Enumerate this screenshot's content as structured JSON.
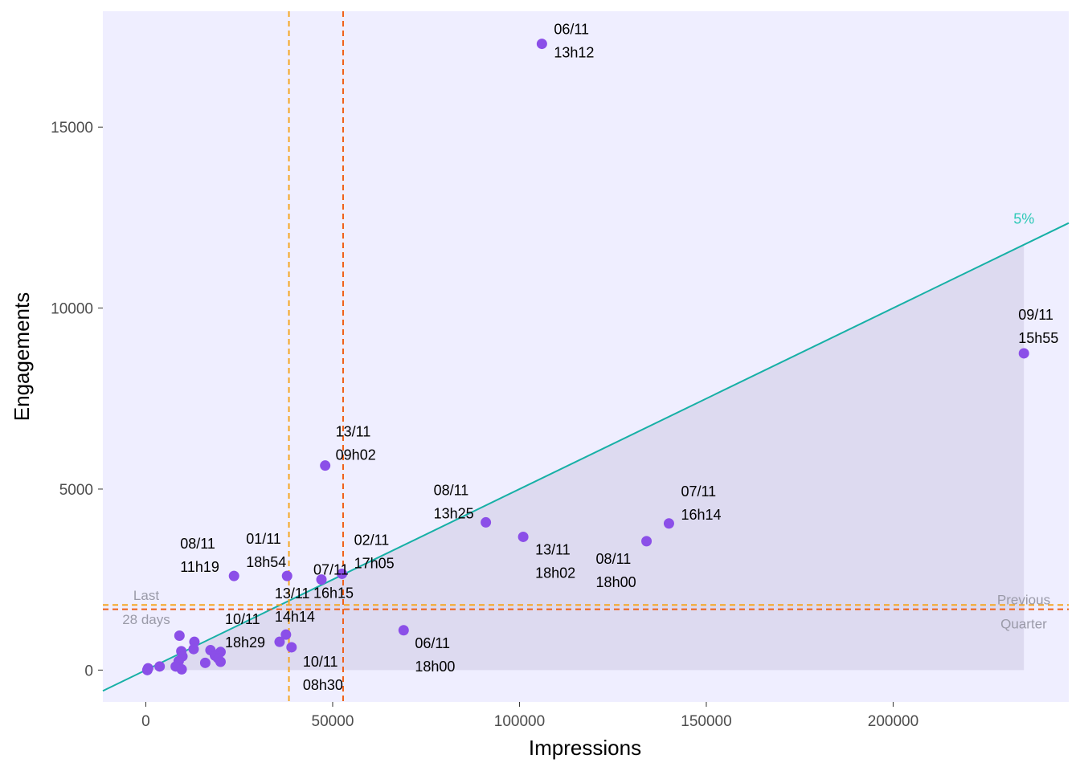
{
  "chart_data": {
    "type": "scatter",
    "xlabel": "Impressions",
    "ylabel": "Engagements",
    "xlim": [
      -11500,
      247000
    ],
    "ylim": [
      -880,
      18200
    ],
    "x_ticks": [
      0,
      50000,
      100000,
      150000,
      200000
    ],
    "y_ticks": [
      0,
      5000,
      10000,
      15000
    ],
    "grid": false,
    "colors": {
      "panel": "#efeeff",
      "shade": "#dddaf0",
      "point": "#8b4fe8",
      "rate_line": "#17b0a6",
      "rate_label": "#2fc9b8",
      "last28": "#f5a623",
      "quarter": "#f0601a",
      "ref_text": "#9a9aa8"
    },
    "rate_line": {
      "rate": 0.05,
      "label": "5%"
    },
    "reference_lines": [
      {
        "name": "last28",
        "x": 38300,
        "y": 1800,
        "label_line1": "Last",
        "label_line2": "28 days"
      },
      {
        "name": "quarter",
        "x": 52800,
        "y": 1680,
        "label_line1": "Previous",
        "label_line2": "Quarter"
      }
    ],
    "shade": {
      "x_end": 235000
    },
    "points": [
      {
        "x": 106000,
        "y": 17300,
        "d": "06/11",
        "t": "13h12"
      },
      {
        "x": 235000,
        "y": 8750,
        "d": "09/11",
        "t": "15h55"
      },
      {
        "x": 48000,
        "y": 5650,
        "d": "13/11",
        "t": "09h02"
      },
      {
        "x": 91000,
        "y": 4080,
        "d": "08/11",
        "t": "13h25"
      },
      {
        "x": 140000,
        "y": 4050,
        "d": "07/11",
        "t": "16h14"
      },
      {
        "x": 101000,
        "y": 3680,
        "d": "13/11",
        "t": "18h02"
      },
      {
        "x": 134000,
        "y": 3560,
        "d": "08/11",
        "t": "18h00"
      },
      {
        "x": 23600,
        "y": 2600,
        "d": "08/11",
        "t": "11h19"
      },
      {
        "x": 37800,
        "y": 2600,
        "d": "01/11",
        "t": "18h54"
      },
      {
        "x": 52500,
        "y": 2660,
        "d": "02/11",
        "t": "17h05"
      },
      {
        "x": 47000,
        "y": 2500,
        "d": "07/11",
        "t": "16h15"
      },
      {
        "x": 37500,
        "y": 980,
        "d": "13/11",
        "t": "14h14"
      },
      {
        "x": 69000,
        "y": 1100,
        "d": "06/11",
        "t": "18h00"
      },
      {
        "x": 35800,
        "y": 780,
        "d": "10/11",
        "t": "18h29"
      },
      {
        "x": 39000,
        "y": 630,
        "d": "10/11",
        "t": "08h30"
      },
      {
        "x": 9000,
        "y": 950,
        "d": "",
        "t": ""
      },
      {
        "x": 13000,
        "y": 780,
        "d": "",
        "t": ""
      },
      {
        "x": 9500,
        "y": 520,
        "d": "",
        "t": ""
      },
      {
        "x": 12800,
        "y": 580,
        "d": "",
        "t": ""
      },
      {
        "x": 17300,
        "y": 550,
        "d": "",
        "t": ""
      },
      {
        "x": 20000,
        "y": 500,
        "d": "",
        "t": ""
      },
      {
        "x": 18500,
        "y": 400,
        "d": "",
        "t": ""
      },
      {
        "x": 9800,
        "y": 380,
        "d": "",
        "t": ""
      },
      {
        "x": 8800,
        "y": 250,
        "d": "",
        "t": ""
      },
      {
        "x": 19300,
        "y": 330,
        "d": "",
        "t": ""
      },
      {
        "x": 20000,
        "y": 230,
        "d": "",
        "t": ""
      },
      {
        "x": 15900,
        "y": 200,
        "d": "",
        "t": ""
      },
      {
        "x": 8000,
        "y": 100,
        "d": "",
        "t": ""
      },
      {
        "x": 3700,
        "y": 100,
        "d": "",
        "t": ""
      },
      {
        "x": 9600,
        "y": 20,
        "d": "",
        "t": ""
      },
      {
        "x": 600,
        "y": 50,
        "d": "",
        "t": ""
      },
      {
        "x": 400,
        "y": 0,
        "d": "",
        "t": ""
      }
    ]
  }
}
